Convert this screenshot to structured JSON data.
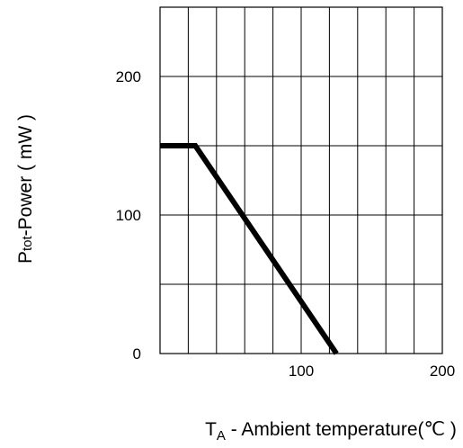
{
  "chart_data": {
    "type": "line",
    "title": "",
    "xlabel": {
      "main": "T",
      "sub": "A",
      "rest": " - Ambient temperature(℃ )"
    },
    "ylabel": {
      "main": "P",
      "sub": "tot",
      "rest": "-Power ( mW )"
    },
    "xlim": [
      0,
      200
    ],
    "ylim": [
      0,
      250
    ],
    "x_ticks": [
      0,
      100,
      200
    ],
    "y_ticks": [
      0,
      100,
      200
    ],
    "x_tick_labels": [
      "100",
      "200"
    ],
    "y_tick_labels": [
      "0",
      "100",
      "200"
    ],
    "x_grid_step": 20,
    "y_grid_step": 50,
    "grid": true,
    "series": [
      {
        "x": [
          0,
          25,
          125
        ],
        "y": [
          150,
          150,
          0
        ],
        "color": "#000000"
      }
    ]
  }
}
